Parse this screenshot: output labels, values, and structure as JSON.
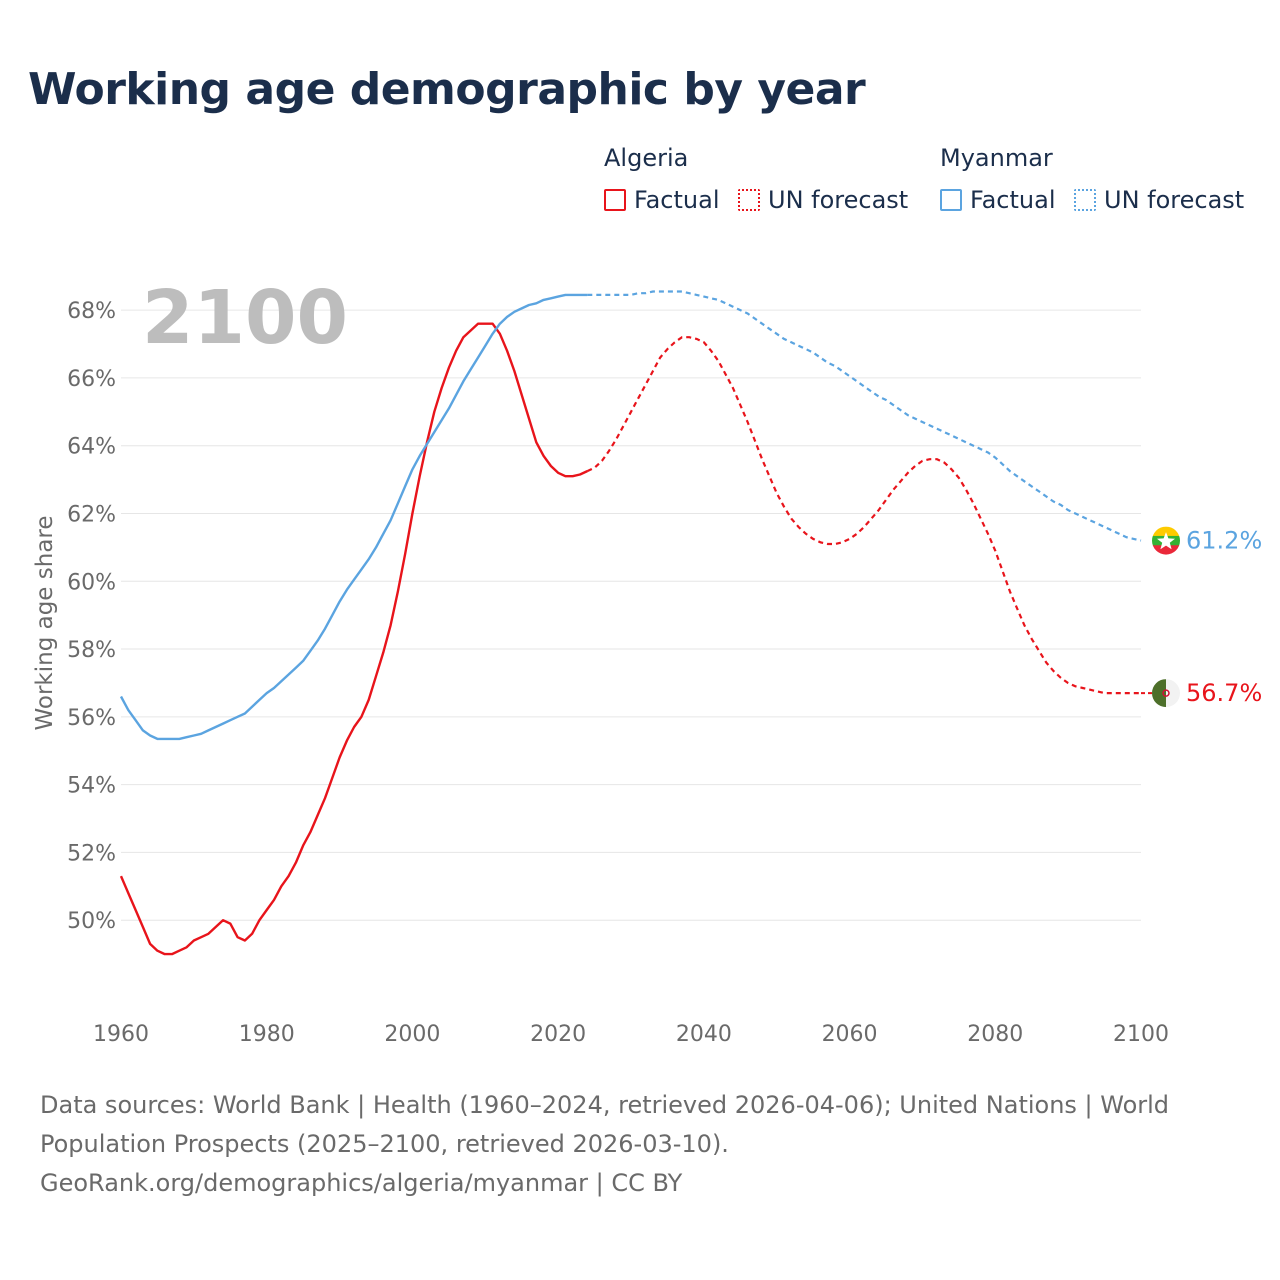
{
  "title": "Working age demographic by year",
  "colors": {
    "algeria": "#e8141b",
    "myanmar": "#5ba4e0",
    "grid": "#e6e6e6",
    "axis_text": "#6a6a6a",
    "year_watermark": "#bdbdbd",
    "title": "#1b2e4b"
  },
  "legend": {
    "groups": [
      {
        "name": "Algeria",
        "factual": "Factual",
        "forecast": "UN forecast"
      },
      {
        "name": "Myanmar",
        "factual": "Factual",
        "forecast": "UN forecast"
      }
    ]
  },
  "current_year_label": "2100",
  "end_labels": {
    "algeria": "56.7%",
    "myanmar": "61.2%"
  },
  "flags": {
    "algeria": "algeria-flag-icon",
    "myanmar": "myanmar-flag-icon"
  },
  "footer": {
    "line1": "Data sources: World Bank | Health (1960–2024, retrieved 2026-04-06); United Nations | World",
    "line2": "Population Prospects (2025–2100, retrieved 2026-03-10).",
    "line3": "GeoRank.org/demographics/algeria/myanmar | CC BY"
  },
  "chart_data": {
    "type": "line",
    "title": "Working age demographic by year",
    "xlabel": "",
    "ylabel": "Working age share",
    "xlim": [
      1960,
      2100
    ],
    "ylim": [
      48,
      68.8
    ],
    "x_ticks": [
      "1960",
      "1980",
      "2000",
      "2020",
      "2040",
      "2060",
      "2080",
      "2100"
    ],
    "y_ticks": [
      "50%",
      "52%",
      "54%",
      "56%",
      "58%",
      "60%",
      "62%",
      "64%",
      "66%",
      "68%"
    ],
    "factual_end_year": 2024,
    "series": [
      {
        "name": "Algeria",
        "color": "#e8141b",
        "points": [
          [
            1960,
            51.3
          ],
          [
            1961,
            50.8
          ],
          [
            1962,
            50.3
          ],
          [
            1963,
            49.8
          ],
          [
            1964,
            49.3
          ],
          [
            1965,
            49.1
          ],
          [
            1966,
            49.0
          ],
          [
            1967,
            49.0
          ],
          [
            1968,
            49.1
          ],
          [
            1969,
            49.2
          ],
          [
            1970,
            49.4
          ],
          [
            1971,
            49.5
          ],
          [
            1972,
            49.6
          ],
          [
            1973,
            49.8
          ],
          [
            1974,
            50.0
          ],
          [
            1975,
            49.9
          ],
          [
            1976,
            49.5
          ],
          [
            1977,
            49.4
          ],
          [
            1978,
            49.6
          ],
          [
            1979,
            50.0
          ],
          [
            1980,
            50.3
          ],
          [
            1981,
            50.6
          ],
          [
            1982,
            51.0
          ],
          [
            1983,
            51.3
          ],
          [
            1984,
            51.7
          ],
          [
            1985,
            52.2
          ],
          [
            1986,
            52.6
          ],
          [
            1987,
            53.1
          ],
          [
            1988,
            53.6
          ],
          [
            1989,
            54.2
          ],
          [
            1990,
            54.8
          ],
          [
            1991,
            55.3
          ],
          [
            1992,
            55.7
          ],
          [
            1993,
            56.0
          ],
          [
            1994,
            56.5
          ],
          [
            1995,
            57.2
          ],
          [
            1996,
            57.9
          ],
          [
            1997,
            58.7
          ],
          [
            1998,
            59.7
          ],
          [
            1999,
            60.8
          ],
          [
            2000,
            62.0
          ],
          [
            2001,
            63.1
          ],
          [
            2002,
            64.1
          ],
          [
            2003,
            65.0
          ],
          [
            2004,
            65.7
          ],
          [
            2005,
            66.3
          ],
          [
            2006,
            66.8
          ],
          [
            2007,
            67.2
          ],
          [
            2008,
            67.4
          ],
          [
            2009,
            67.6
          ],
          [
            2010,
            67.6
          ],
          [
            2011,
            67.6
          ],
          [
            2012,
            67.3
          ],
          [
            2013,
            66.8
          ],
          [
            2014,
            66.2
          ],
          [
            2015,
            65.5
          ],
          [
            2016,
            64.8
          ],
          [
            2017,
            64.1
          ],
          [
            2018,
            63.7
          ],
          [
            2019,
            63.4
          ],
          [
            2020,
            63.2
          ],
          [
            2021,
            63.1
          ],
          [
            2022,
            63.1
          ],
          [
            2023,
            63.15
          ],
          [
            2024,
            63.25
          ],
          [
            2025,
            63.35
          ],
          [
            2026,
            63.55
          ],
          [
            2027,
            63.85
          ],
          [
            2028,
            64.2
          ],
          [
            2029,
            64.6
          ],
          [
            2030,
            65.0
          ],
          [
            2031,
            65.4
          ],
          [
            2032,
            65.8
          ],
          [
            2033,
            66.2
          ],
          [
            2034,
            66.6
          ],
          [
            2035,
            66.85
          ],
          [
            2036,
            67.05
          ],
          [
            2037,
            67.2
          ],
          [
            2038,
            67.2
          ],
          [
            2039,
            67.15
          ],
          [
            2040,
            67.05
          ],
          [
            2041,
            66.8
          ],
          [
            2042,
            66.5
          ],
          [
            2043,
            66.1
          ],
          [
            2044,
            65.7
          ],
          [
            2045,
            65.2
          ],
          [
            2046,
            64.7
          ],
          [
            2047,
            64.15
          ],
          [
            2048,
            63.6
          ],
          [
            2049,
            63.1
          ],
          [
            2050,
            62.6
          ],
          [
            2051,
            62.2
          ],
          [
            2052,
            61.85
          ],
          [
            2053,
            61.6
          ],
          [
            2054,
            61.4
          ],
          [
            2055,
            61.25
          ],
          [
            2056,
            61.15
          ],
          [
            2057,
            61.1
          ],
          [
            2058,
            61.1
          ],
          [
            2059,
            61.15
          ],
          [
            2060,
            61.25
          ],
          [
            2061,
            61.4
          ],
          [
            2062,
            61.6
          ],
          [
            2063,
            61.85
          ],
          [
            2064,
            62.1
          ],
          [
            2065,
            62.4
          ],
          [
            2066,
            62.7
          ],
          [
            2067,
            62.95
          ],
          [
            2068,
            63.2
          ],
          [
            2069,
            63.4
          ],
          [
            2070,
            63.55
          ],
          [
            2071,
            63.6
          ],
          [
            2072,
            63.6
          ],
          [
            2073,
            63.5
          ],
          [
            2074,
            63.3
          ],
          [
            2075,
            63.05
          ],
          [
            2076,
            62.7
          ],
          [
            2077,
            62.3
          ],
          [
            2078,
            61.85
          ],
          [
            2079,
            61.4
          ],
          [
            2080,
            60.9
          ],
          [
            2081,
            60.3
          ],
          [
            2082,
            59.7
          ],
          [
            2083,
            59.2
          ],
          [
            2084,
            58.7
          ],
          [
            2085,
            58.3
          ],
          [
            2086,
            57.95
          ],
          [
            2087,
            57.6
          ],
          [
            2088,
            57.35
          ],
          [
            2089,
            57.15
          ],
          [
            2090,
            57.0
          ],
          [
            2091,
            56.9
          ],
          [
            2092,
            56.85
          ],
          [
            2093,
            56.8
          ],
          [
            2094,
            56.75
          ],
          [
            2095,
            56.7
          ],
          [
            2096,
            56.7
          ],
          [
            2097,
            56.7
          ],
          [
            2098,
            56.7
          ],
          [
            2099,
            56.7
          ],
          [
            2100,
            56.7
          ]
        ]
      },
      {
        "name": "Myanmar",
        "color": "#5ba4e0",
        "points": [
          [
            1960,
            56.6
          ],
          [
            1961,
            56.2
          ],
          [
            1962,
            55.9
          ],
          [
            1963,
            55.6
          ],
          [
            1964,
            55.45
          ],
          [
            1965,
            55.35
          ],
          [
            1966,
            55.35
          ],
          [
            1967,
            55.35
          ],
          [
            1968,
            55.35
          ],
          [
            1969,
            55.4
          ],
          [
            1970,
            55.45
          ],
          [
            1971,
            55.5
          ],
          [
            1972,
            55.6
          ],
          [
            1973,
            55.7
          ],
          [
            1974,
            55.8
          ],
          [
            1975,
            55.9
          ],
          [
            1976,
            56.0
          ],
          [
            1977,
            56.1
          ],
          [
            1978,
            56.3
          ],
          [
            1979,
            56.5
          ],
          [
            1980,
            56.7
          ],
          [
            1981,
            56.85
          ],
          [
            1982,
            57.05
          ],
          [
            1983,
            57.25
          ],
          [
            1984,
            57.45
          ],
          [
            1985,
            57.65
          ],
          [
            1986,
            57.95
          ],
          [
            1987,
            58.25
          ],
          [
            1988,
            58.6
          ],
          [
            1989,
            59.0
          ],
          [
            1990,
            59.4
          ],
          [
            1991,
            59.75
          ],
          [
            1992,
            60.05
          ],
          [
            1993,
            60.35
          ],
          [
            1994,
            60.65
          ],
          [
            1995,
            61.0
          ],
          [
            1996,
            61.4
          ],
          [
            1997,
            61.8
          ],
          [
            1998,
            62.3
          ],
          [
            1999,
            62.8
          ],
          [
            2000,
            63.3
          ],
          [
            2001,
            63.7
          ],
          [
            2002,
            64.05
          ],
          [
            2003,
            64.4
          ],
          [
            2004,
            64.75
          ],
          [
            2005,
            65.1
          ],
          [
            2006,
            65.5
          ],
          [
            2007,
            65.9
          ],
          [
            2008,
            66.25
          ],
          [
            2009,
            66.6
          ],
          [
            2010,
            66.95
          ],
          [
            2011,
            67.3
          ],
          [
            2012,
            67.6
          ],
          [
            2013,
            67.8
          ],
          [
            2014,
            67.95
          ],
          [
            2015,
            68.05
          ],
          [
            2016,
            68.15
          ],
          [
            2017,
            68.2
          ],
          [
            2018,
            68.3
          ],
          [
            2019,
            68.35
          ],
          [
            2020,
            68.4
          ],
          [
            2021,
            68.45
          ],
          [
            2022,
            68.45
          ],
          [
            2023,
            68.45
          ],
          [
            2024,
            68.45
          ],
          [
            2025,
            68.45
          ],
          [
            2026,
            68.45
          ],
          [
            2027,
            68.45
          ],
          [
            2028,
            68.45
          ],
          [
            2029,
            68.45
          ],
          [
            2030,
            68.45
          ],
          [
            2031,
            68.5
          ],
          [
            2032,
            68.5
          ],
          [
            2033,
            68.55
          ],
          [
            2034,
            68.55
          ],
          [
            2035,
            68.55
          ],
          [
            2036,
            68.55
          ],
          [
            2037,
            68.55
          ],
          [
            2038,
            68.5
          ],
          [
            2039,
            68.45
          ],
          [
            2040,
            68.4
          ],
          [
            2041,
            68.35
          ],
          [
            2042,
            68.3
          ],
          [
            2043,
            68.2
          ],
          [
            2044,
            68.1
          ],
          [
            2045,
            68.0
          ],
          [
            2046,
            67.9
          ],
          [
            2047,
            67.75
          ],
          [
            2048,
            67.6
          ],
          [
            2049,
            67.45
          ],
          [
            2050,
            67.3
          ],
          [
            2051,
            67.15
          ],
          [
            2052,
            67.05
          ],
          [
            2053,
            66.95
          ],
          [
            2054,
            66.85
          ],
          [
            2055,
            66.75
          ],
          [
            2056,
            66.6
          ],
          [
            2057,
            66.45
          ],
          [
            2058,
            66.35
          ],
          [
            2059,
            66.2
          ],
          [
            2060,
            66.05
          ],
          [
            2061,
            65.9
          ],
          [
            2062,
            65.75
          ],
          [
            2063,
            65.6
          ],
          [
            2064,
            65.45
          ],
          [
            2065,
            65.35
          ],
          [
            2066,
            65.2
          ],
          [
            2067,
            65.05
          ],
          [
            2068,
            64.9
          ],
          [
            2069,
            64.8
          ],
          [
            2070,
            64.7
          ],
          [
            2071,
            64.6
          ],
          [
            2072,
            64.5
          ],
          [
            2073,
            64.4
          ],
          [
            2074,
            64.3
          ],
          [
            2075,
            64.2
          ],
          [
            2076,
            64.1
          ],
          [
            2077,
            64.0
          ],
          [
            2078,
            63.9
          ],
          [
            2079,
            63.8
          ],
          [
            2080,
            63.65
          ],
          [
            2081,
            63.45
          ],
          [
            2082,
            63.25
          ],
          [
            2083,
            63.1
          ],
          [
            2084,
            62.95
          ],
          [
            2085,
            62.8
          ],
          [
            2086,
            62.65
          ],
          [
            2087,
            62.5
          ],
          [
            2088,
            62.35
          ],
          [
            2089,
            62.25
          ],
          [
            2090,
            62.1
          ],
          [
            2091,
            62.0
          ],
          [
            2092,
            61.9
          ],
          [
            2093,
            61.8
          ],
          [
            2094,
            61.7
          ],
          [
            2095,
            61.6
          ],
          [
            2096,
            61.5
          ],
          [
            2097,
            61.4
          ],
          [
            2098,
            61.3
          ],
          [
            2099,
            61.25
          ],
          [
            2100,
            61.2
          ]
        ]
      }
    ]
  }
}
